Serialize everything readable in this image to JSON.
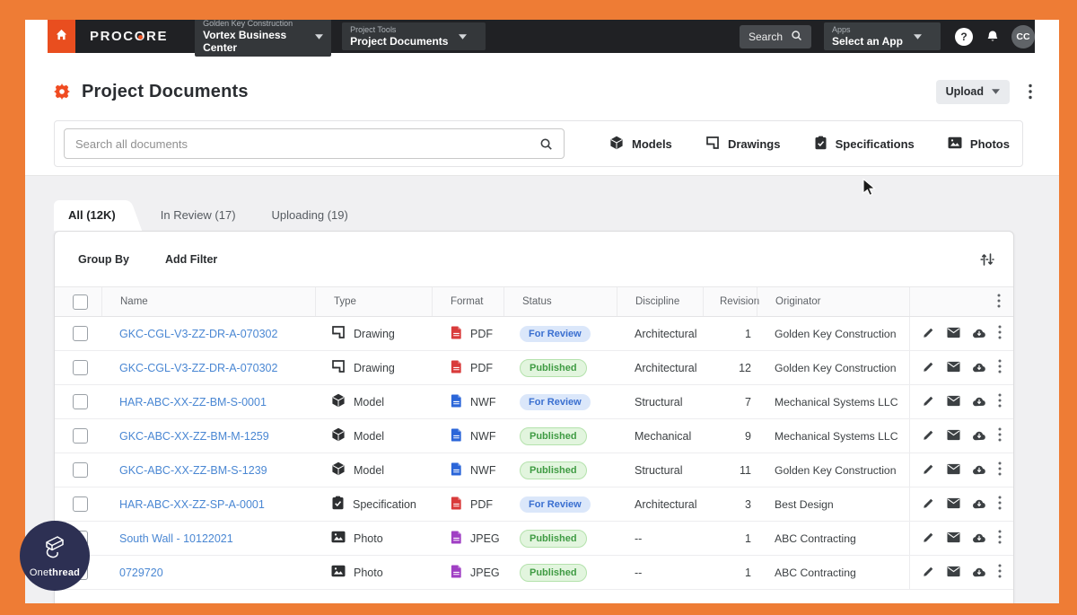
{
  "nav": {
    "logo": {
      "part1": "PROC",
      "part2": "O",
      "part3": "RE"
    },
    "company_label": "Golden Key Construction",
    "company_value": "Vortex Business Center",
    "tools_label": "Project Tools",
    "tools_value": "Project Documents",
    "search_label": "Search",
    "apps_label": "Apps",
    "apps_value": "Select an App",
    "help_label": "?",
    "avatar_initials": "CC"
  },
  "header": {
    "title": "Project Documents",
    "upload_label": "Upload"
  },
  "search": {
    "placeholder": "Search all documents"
  },
  "categories": [
    {
      "label": "Models",
      "icon": "cube-icon"
    },
    {
      "label": "Drawings",
      "icon": "drawing-icon"
    },
    {
      "label": "Specifications",
      "icon": "spec-icon"
    },
    {
      "label": "Photos",
      "icon": "photo-icon"
    }
  ],
  "tabs": [
    {
      "label": "All (12K)",
      "active": true
    },
    {
      "label": "In Review (17)",
      "active": false
    },
    {
      "label": "Uploading (19)",
      "active": false
    }
  ],
  "toolbar": {
    "group_by": "Group By",
    "add_filter": "Add Filter"
  },
  "table": {
    "columns": [
      "Name",
      "Type",
      "Format",
      "Status",
      "Discipline",
      "Revision",
      "Originator"
    ],
    "rows": [
      {
        "name": "GKC-CGL-V3-ZZ-DR-A-070302",
        "type": "Drawing",
        "type_icon": "drawing-icon",
        "format": "PDF",
        "format_icon": "pdf-file-icon",
        "format_color": "#D93B3B",
        "status": {
          "label": "For Review",
          "kind": "review"
        },
        "discipline": "Architectural",
        "revision": "1",
        "originator": "Golden Key Construction"
      },
      {
        "name": "GKC-CGL-V3-ZZ-DR-A-070302",
        "type": "Drawing",
        "type_icon": "drawing-icon",
        "format": "PDF",
        "format_icon": "pdf-file-icon",
        "format_color": "#D93B3B",
        "status": {
          "label": "Published",
          "kind": "published"
        },
        "discipline": "Architectural",
        "revision": "12",
        "originator": "Golden Key Construction"
      },
      {
        "name": "HAR-ABC-XX-ZZ-BM-S-0001",
        "type": "Model",
        "type_icon": "cube-icon",
        "format": "NWF",
        "format_icon": "nwf-file-icon",
        "format_color": "#2B66D9",
        "status": {
          "label": "For Review",
          "kind": "review"
        },
        "discipline": "Structural",
        "revision": "7",
        "originator": "Mechanical Systems LLC"
      },
      {
        "name": "GKC-ABC-XX-ZZ-BM-M-1259",
        "type": "Model",
        "type_icon": "cube-icon",
        "format": "NWF",
        "format_icon": "nwf-file-icon",
        "format_color": "#2B66D9",
        "status": {
          "label": "Published",
          "kind": "published"
        },
        "discipline": "Mechanical",
        "revision": "9",
        "originator": "Mechanical Systems LLC"
      },
      {
        "name": "GKC-ABC-XX-ZZ-BM-S-1239",
        "type": "Model",
        "type_icon": "cube-icon",
        "format": "NWF",
        "format_icon": "nwf-file-icon",
        "format_color": "#2B66D9",
        "status": {
          "label": "Published",
          "kind": "published"
        },
        "discipline": "Structural",
        "revision": "11",
        "originator": "Golden Key Construction"
      },
      {
        "name": "HAR-ABC-XX-ZZ-SP-A-0001",
        "type": "Specification",
        "type_icon": "spec-icon",
        "format": "PDF",
        "format_icon": "pdf-file-icon",
        "format_color": "#D93B3B",
        "status": {
          "label": "For Review",
          "kind": "review"
        },
        "discipline": "Architectural",
        "revision": "3",
        "originator": "Best Design"
      },
      {
        "name": "South Wall - 10122021",
        "type": "Photo",
        "type_icon": "photo-icon",
        "format": "JPEG",
        "format_icon": "jpeg-file-icon",
        "format_color": "#A03FC4",
        "status": {
          "label": "Published",
          "kind": "published"
        },
        "discipline": "--",
        "revision": "1",
        "originator": "ABC Contracting"
      },
      {
        "name": "0729720",
        "type": "Photo",
        "type_icon": "photo-icon",
        "format": "JPEG",
        "format_icon": "jpeg-file-icon",
        "format_color": "#A03FC4",
        "status": {
          "label": "Published",
          "kind": "published"
        },
        "discipline": "--",
        "revision": "1",
        "originator": "ABC Contracting"
      }
    ]
  },
  "watermark": {
    "brand_regular": "One",
    "brand_bold": "thread"
  },
  "colors": {
    "frame_orange": "#EE7C35",
    "home_button_orange": "#E94E1F",
    "gear_orange": "#F04B21",
    "link_blue": "#4A87D3",
    "review_badge_bg": "#DBE7FA",
    "review_badge_text": "#3A6FD0",
    "published_badge_bg": "#E2F5DE",
    "published_badge_text": "#3F9B43",
    "pdf_red": "#D93B3B",
    "nwf_blue": "#2B66D9",
    "jpeg_purple": "#A03FC4",
    "nav_bg": "#202124"
  }
}
